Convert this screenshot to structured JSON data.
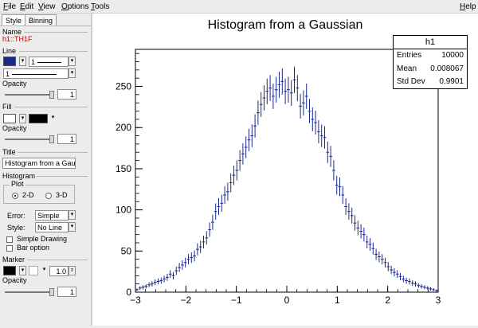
{
  "menubar": {
    "items": [
      {
        "underline": "F",
        "rest": "ile"
      },
      {
        "underline": "E",
        "rest": "dit"
      },
      {
        "underline": "V",
        "rest": "iew"
      },
      {
        "underline": "O",
        "rest": "ptions"
      },
      {
        "underline": "T",
        "rest": "ools"
      }
    ],
    "help": {
      "underline": "H",
      "rest": "elp"
    }
  },
  "sidebar": {
    "tabs": [
      "Style",
      "Binning"
    ],
    "name_label": "Name",
    "object_name": "h1::TH1F",
    "line_label": "Line",
    "line_width_value": "1",
    "line_style_value": "1",
    "opacity_label": "Opacity",
    "line_opacity_value": "1",
    "fill_label": "Fill",
    "fill_opacity_value": "1",
    "title_label": "Title",
    "title_value": "Histogram from a Gaus",
    "histogram_label": "Histogram",
    "plot_label": "Plot",
    "plot_2d": "2-D",
    "plot_3d": "3-D",
    "error_label": "Error:",
    "error_value": "Simple",
    "style_label": "Style:",
    "style_value": "No Line",
    "simple_drawing": "Simple Drawing",
    "bar_option": "Bar option",
    "marker_label": "Marker",
    "marker_size": "1.0",
    "marker_opacity_value": "1",
    "line_color": "#1a2a8a",
    "fill_color": "#000000"
  },
  "stats": {
    "title": "h1",
    "rows": [
      {
        "label": "Entries",
        "value": "10000"
      },
      {
        "label": "Mean",
        "value": "0.008067"
      },
      {
        "label": "Std Dev",
        "value": "0.9901"
      }
    ]
  },
  "chart_data": {
    "type": "bar",
    "title": "Histogram from a Gaussian",
    "xlabel": "",
    "ylabel": "",
    "xlim": [
      -3,
      3
    ],
    "ylim": [
      0,
      295
    ],
    "xticks": [
      "−3",
      "−2",
      "−1",
      "0",
      "1",
      "2",
      "3"
    ],
    "yticks": [
      "0",
      "50",
      "100",
      "150",
      "200",
      "250"
    ],
    "marker_color": "#1a2a8a",
    "bin_width": 0.06,
    "bin_centers": [
      -2.97,
      -2.91,
      -2.85,
      -2.79,
      -2.73,
      -2.67,
      -2.61,
      -2.55,
      -2.49,
      -2.43,
      -2.37,
      -2.31,
      -2.25,
      -2.19,
      -2.13,
      -2.07,
      -2.01,
      -1.95,
      -1.89,
      -1.83,
      -1.77,
      -1.71,
      -1.65,
      -1.59,
      -1.53,
      -1.47,
      -1.41,
      -1.35,
      -1.29,
      -1.23,
      -1.17,
      -1.11,
      -1.05,
      -0.99,
      -0.93,
      -0.87,
      -0.81,
      -0.75,
      -0.69,
      -0.63,
      -0.57,
      -0.51,
      -0.45,
      -0.39,
      -0.33,
      -0.27,
      -0.21,
      -0.15,
      -0.09,
      -0.03,
      0.03,
      0.09,
      0.15,
      0.21,
      0.27,
      0.33,
      0.39,
      0.45,
      0.51,
      0.57,
      0.63,
      0.69,
      0.75,
      0.81,
      0.87,
      0.93,
      0.99,
      1.05,
      1.11,
      1.17,
      1.23,
      1.29,
      1.35,
      1.41,
      1.47,
      1.53,
      1.59,
      1.65,
      1.71,
      1.77,
      1.83,
      1.89,
      1.95,
      2.01,
      2.07,
      2.13,
      2.19,
      2.25,
      2.31,
      2.37,
      2.43,
      2.49,
      2.55,
      2.61,
      2.67,
      2.73,
      2.79,
      2.85,
      2.91,
      2.97
    ],
    "counts": [
      3,
      5,
      6,
      7,
      9,
      10,
      12,
      13,
      14,
      16,
      18,
      22,
      20,
      26,
      30,
      33,
      36,
      40,
      42,
      44,
      52,
      55,
      61,
      66,
      76,
      85,
      98,
      104,
      108,
      118,
      122,
      133,
      142,
      148,
      160,
      168,
      176,
      185,
      190,
      202,
      218,
      228,
      236,
      244,
      248,
      238,
      246,
      252,
      256,
      244,
      246,
      242,
      258,
      248,
      226,
      230,
      238,
      220,
      210,
      206,
      195,
      190,
      188,
      170,
      165,
      148,
      130,
      128,
      118,
      104,
      98,
      93,
      84,
      78,
      74,
      70,
      61,
      58,
      53,
      46,
      43,
      40,
      36,
      31,
      27,
      24,
      22,
      19,
      16,
      14,
      13,
      11,
      10,
      8,
      7,
      6,
      5,
      4,
      3,
      2
    ]
  }
}
